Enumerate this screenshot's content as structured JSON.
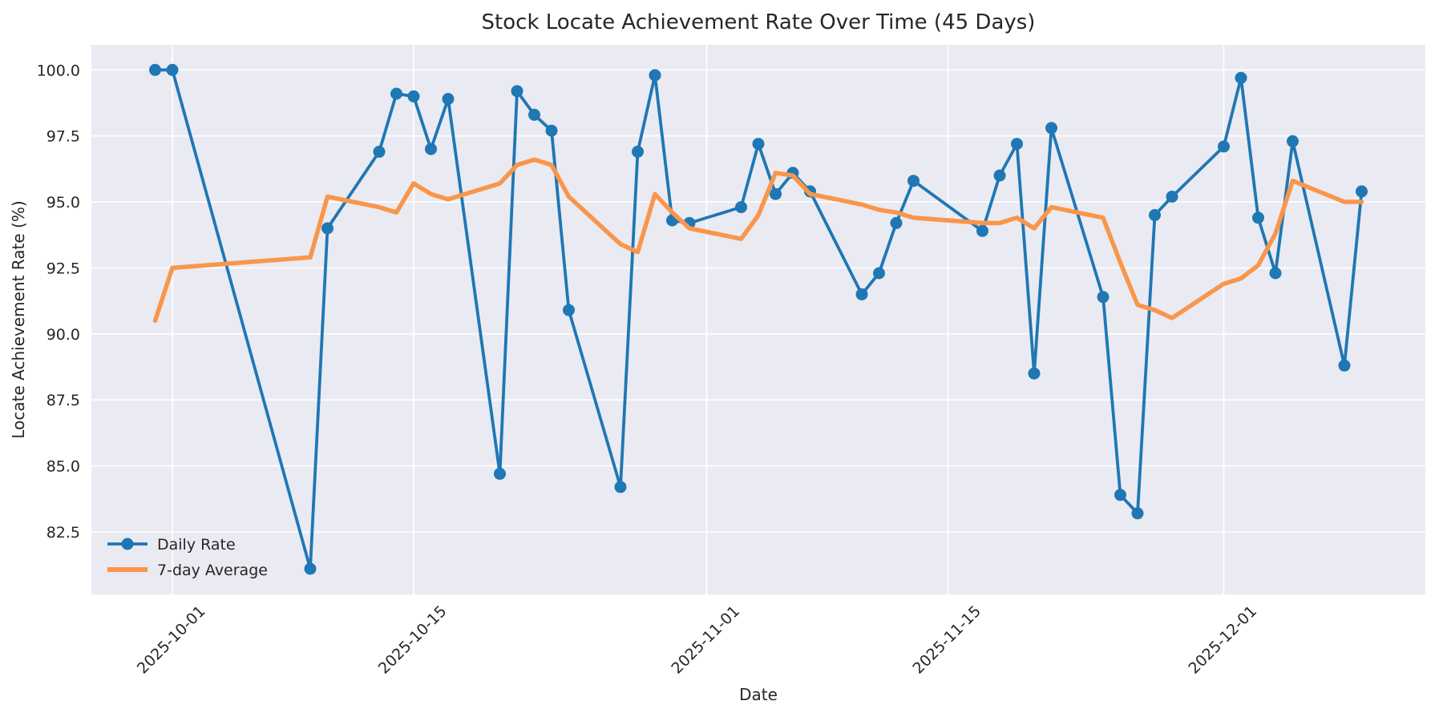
{
  "chart_data": {
    "type": "line",
    "title": "Stock Locate Achievement Rate Over Time (45 Days)",
    "xlabel": "Date",
    "ylabel": "Locate Achievement Rate (%)",
    "x": [
      "2025-09-30",
      "2025-10-01",
      "2025-10-09",
      "2025-10-10",
      "2025-10-13",
      "2025-10-14",
      "2025-10-15",
      "2025-10-16",
      "2025-10-17",
      "2025-10-20",
      "2025-10-21",
      "2025-10-22",
      "2025-10-23",
      "2025-10-24",
      "2025-10-27",
      "2025-10-28",
      "2025-10-29",
      "2025-10-30",
      "2025-10-31",
      "2025-11-03",
      "2025-11-04",
      "2025-11-05",
      "2025-11-06",
      "2025-11-07",
      "2025-11-10",
      "2025-11-11",
      "2025-11-12",
      "2025-11-13",
      "2025-11-17",
      "2025-11-18",
      "2025-11-19",
      "2025-11-20",
      "2025-11-21",
      "2025-11-24",
      "2025-11-25",
      "2025-11-26",
      "2025-11-27",
      "2025-11-28",
      "2025-12-01",
      "2025-12-02",
      "2025-12-03",
      "2025-12-04",
      "2025-12-05",
      "2025-12-08",
      "2025-12-09"
    ],
    "series": [
      {
        "name": "Daily Rate",
        "color": "#1f77b4",
        "marker": "circle",
        "line_width": 3.8,
        "marker_radius": 7.5,
        "values": [
          100.0,
          100.0,
          81.1,
          94.0,
          96.9,
          99.1,
          99.0,
          97.0,
          98.9,
          84.7,
          99.2,
          98.3,
          97.7,
          90.9,
          84.2,
          96.9,
          99.8,
          94.3,
          94.2,
          94.8,
          97.2,
          95.3,
          96.1,
          95.4,
          91.5,
          92.3,
          94.2,
          95.8,
          93.9,
          96.0,
          97.2,
          88.5,
          97.8,
          91.4,
          83.9,
          83.2,
          94.5,
          95.2,
          97.1,
          99.7,
          94.4,
          92.3,
          97.3,
          88.8,
          95.4
        ]
      },
      {
        "name": "7-day Average",
        "color": "#f9964a",
        "marker": "none",
        "line_width": 5.5,
        "values": [
          90.5,
          92.5,
          92.9,
          95.2,
          94.8,
          94.6,
          95.7,
          95.3,
          95.1,
          95.7,
          96.4,
          96.6,
          96.4,
          95.2,
          93.4,
          93.1,
          95.3,
          94.6,
          94.0,
          93.6,
          94.5,
          96.1,
          96.0,
          95.3,
          94.9,
          94.7,
          94.6,
          94.4,
          94.2,
          94.2,
          94.4,
          94.0,
          94.8,
          94.4,
          92.7,
          91.1,
          90.9,
          90.6,
          91.9,
          92.1,
          92.6,
          93.8,
          95.8,
          95.0,
          95.0
        ]
      }
    ],
    "yticks": [
      82.5,
      85.0,
      87.5,
      90.0,
      92.5,
      95.0,
      97.5,
      100.0
    ],
    "xticks": [
      "2025-10-01",
      "2025-10-15",
      "2025-11-01",
      "2025-11-15",
      "2025-12-01"
    ],
    "ylim": [
      80.13,
      100.95
    ],
    "xlim_days": [
      -4.7,
      72.7
    ],
    "grid": true,
    "legend_position": "lower left",
    "plot_background": "#eaeaf2",
    "grid_color": "#ffffff",
    "text_color": "#262626",
    "xtick_rotation_deg": 45
  }
}
